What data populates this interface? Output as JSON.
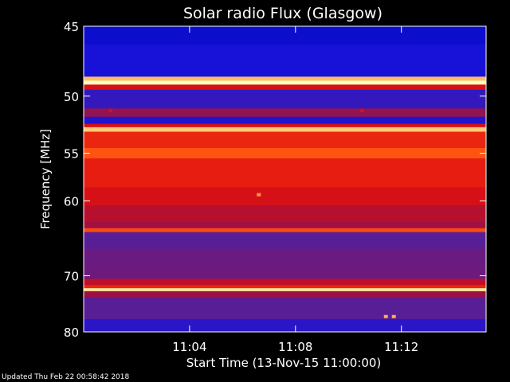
{
  "chart_data": {
    "type": "heatmap",
    "title": "Solar radio Flux (Glasgow)",
    "xlabel": "Start Time (13-Nov-15 11:00:00)",
    "ylabel": "Frequency [MHz]",
    "x_ticks": [
      "11:04",
      "11:08",
      "11:12"
    ],
    "x_tick_minutes": [
      4,
      8,
      12
    ],
    "xlim_minutes": [
      0,
      15.2
    ],
    "y_ticks": [
      45,
      50,
      55,
      60,
      70,
      80
    ],
    "ylim": [
      45,
      80
    ],
    "y_scale": "reciprocal",
    "colormap": [
      "#000070",
      "#1010e0",
      "#5020a0",
      "#a01040",
      "#e01010",
      "#ff5010",
      "#ffa040",
      "#ffffc0"
    ],
    "bands": [
      {
        "f0": 44.6,
        "f1": 45.0,
        "level": 0.45
      },
      {
        "f0": 45.0,
        "f1": 46.2,
        "level": 0.12
      },
      {
        "f0": 46.2,
        "f1": 48.5,
        "level": 0.16
      },
      {
        "f0": 48.5,
        "f1": 48.8,
        "level": 0.9
      },
      {
        "f0": 48.8,
        "f1": 49.1,
        "level": 1.0
      },
      {
        "f0": 49.1,
        "f1": 49.5,
        "level": 0.55
      },
      {
        "f0": 49.5,
        "f1": 51.0,
        "level": 0.22
      },
      {
        "f0": 51.0,
        "f1": 51.7,
        "level": 0.4
      },
      {
        "f0": 51.7,
        "f1": 52.3,
        "level": 0.18
      },
      {
        "f0": 52.3,
        "f1": 52.6,
        "level": 0.55
      },
      {
        "f0": 52.6,
        "f1": 53.0,
        "level": 0.92
      },
      {
        "f0": 53.0,
        "f1": 54.5,
        "level": 0.62
      },
      {
        "f0": 54.5,
        "f1": 55.5,
        "level": 0.72
      },
      {
        "f0": 55.5,
        "f1": 58.5,
        "level": 0.6
      },
      {
        "f0": 58.5,
        "f1": 60.5,
        "level": 0.55
      },
      {
        "f0": 60.5,
        "f1": 62.5,
        "level": 0.48
      },
      {
        "f0": 62.5,
        "f1": 63.3,
        "level": 0.43
      },
      {
        "f0": 63.3,
        "f1": 63.8,
        "level": 0.7
      },
      {
        "f0": 63.8,
        "f1": 66.0,
        "level": 0.3
      },
      {
        "f0": 66.0,
        "f1": 68.5,
        "level": 0.33
      },
      {
        "f0": 68.5,
        "f1": 70.5,
        "level": 0.34
      },
      {
        "f0": 70.5,
        "f1": 71.5,
        "level": 0.5
      },
      {
        "f0": 71.5,
        "f1": 72.0,
        "level": 0.62
      },
      {
        "f0": 72.0,
        "f1": 72.5,
        "level": 0.96
      },
      {
        "f0": 72.5,
        "f1": 73.5,
        "level": 0.42
      },
      {
        "f0": 73.5,
        "f1": 77.5,
        "level": 0.3
      },
      {
        "f0": 77.5,
        "f1": 80.5,
        "level": 0.2
      }
    ],
    "bursts": [
      {
        "t": 6.6,
        "f": 59.3,
        "level": 0.85
      },
      {
        "t": 1.0,
        "f": 51.2,
        "level": 0.55
      },
      {
        "t": 10.5,
        "f": 51.2,
        "level": 0.55
      },
      {
        "t": 11.4,
        "f": 77.0,
        "level": 0.88
      },
      {
        "t": 11.7,
        "f": 77.0,
        "level": 0.88
      }
    ]
  },
  "footer": {
    "updated": "Updated Thu Feb 22 00:58:42 2018"
  }
}
